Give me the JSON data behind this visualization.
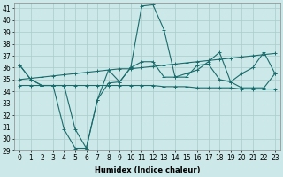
{
  "title": "",
  "xlabel": "Humidex (Indice chaleur)",
  "xlim": [
    -0.5,
    23.5
  ],
  "ylim": [
    29,
    41.5
  ],
  "yticks": [
    29,
    30,
    31,
    32,
    33,
    34,
    35,
    36,
    37,
    38,
    39,
    40,
    41
  ],
  "xticks": [
    0,
    1,
    2,
    3,
    4,
    5,
    6,
    7,
    8,
    9,
    10,
    11,
    12,
    13,
    14,
    15,
    16,
    17,
    18,
    19,
    20,
    21,
    22,
    23
  ],
  "bg_color": "#cce8e8",
  "grid_color": "#aacccc",
  "line_color": "#1a6b6b",
  "series": [
    [
      36.2,
      35.0,
      34.5,
      34.5,
      30.8,
      29.2,
      29.2,
      33.3,
      34.7,
      34.8,
      36.0,
      41.2,
      41.3,
      39.2,
      35.2,
      35.2,
      36.2,
      36.3,
      35.0,
      34.8,
      34.3,
      34.3,
      34.3,
      35.5
    ],
    [
      36.2,
      35.0,
      34.5,
      34.5,
      34.5,
      30.8,
      29.2,
      33.3,
      35.8,
      34.8,
      36.0,
      36.5,
      36.5,
      35.2,
      35.2,
      35.5,
      35.8,
      36.5,
      37.3,
      34.8,
      35.5,
      36.0,
      37.3,
      35.5
    ],
    [
      35.0,
      35.1,
      35.2,
      35.3,
      35.4,
      35.5,
      35.6,
      35.7,
      35.8,
      35.9,
      35.9,
      36.0,
      36.1,
      36.2,
      36.3,
      36.4,
      36.5,
      36.6,
      36.7,
      36.8,
      36.9,
      37.0,
      37.1,
      37.2
    ],
    [
      34.5,
      34.5,
      34.5,
      34.5,
      34.5,
      34.5,
      34.5,
      34.5,
      34.5,
      34.5,
      34.5,
      34.5,
      34.5,
      34.4,
      34.4,
      34.4,
      34.3,
      34.3,
      34.3,
      34.3,
      34.2,
      34.2,
      34.2,
      34.2
    ]
  ],
  "line_width": 0.8,
  "marker": "+",
  "marker_size": 3,
  "label_fontsize": 6,
  "tick_fontsize": 5.5
}
